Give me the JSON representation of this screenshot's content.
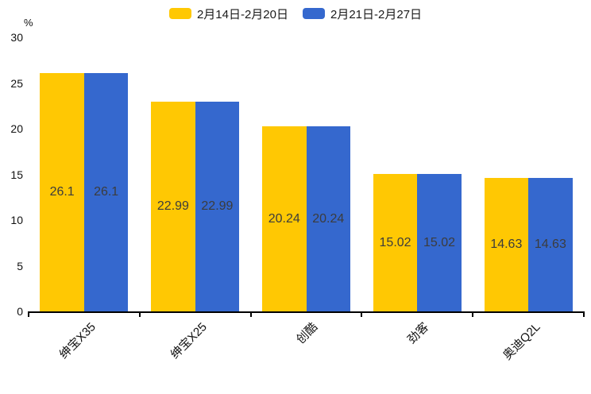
{
  "chart_data": {
    "type": "bar",
    "title": "",
    "xlabel": "",
    "ylabel": "%",
    "categories": [
      "绅宝X35",
      "绅宝X25",
      "创酷",
      "劲客",
      "奥迪Q2L"
    ],
    "series": [
      {
        "name": "2月14日-2月20日",
        "color": "#FFC803",
        "values": [
          26.1,
          22.99,
          20.24,
          15.02,
          14.63
        ]
      },
      {
        "name": "2月21日-2月27日",
        "color": "#3568CE",
        "values": [
          26.1,
          22.99,
          20.24,
          15.02,
          14.63
        ]
      }
    ],
    "yticks": [
      0,
      5,
      10,
      15,
      20,
      25,
      30
    ],
    "ylim": [
      0,
      30
    ],
    "grid": false,
    "legend_position": "top",
    "value_labels_inside_bars": true,
    "value_label_color": "#3c3c3c",
    "axis_color": "#000000"
  }
}
